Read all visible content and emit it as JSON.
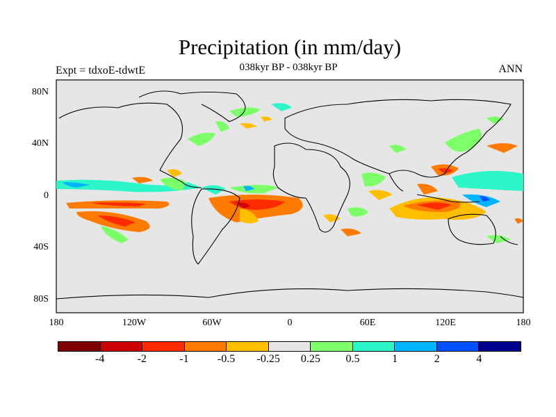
{
  "title": "Precipitation (in mm/day)",
  "subtitle": "038kyr BP - 038kyr BP",
  "left_label": "Expt = tdxoE-tdwtE",
  "right_label": "ANN",
  "y_ticks": [
    "80N",
    "40N",
    "0",
    "40S",
    "80S"
  ],
  "x_ticks": [
    "180",
    "120W",
    "60W",
    "0",
    "60E",
    "120E",
    "180"
  ],
  "colorbar": {
    "colors": [
      "#7f0000",
      "#cc0000",
      "#ff2a00",
      "#ff7b00",
      "#ffbf00",
      "#e6e6e6",
      "#7dff6a",
      "#2cf5c8",
      "#00b4ff",
      "#0050ff",
      "#00008c"
    ],
    "labels": [
      "-4",
      "-2",
      "-1",
      "-0.5",
      "-0.25",
      "0.25",
      "0.5",
      "1",
      "2",
      "4"
    ]
  },
  "colors": {
    "background": "#e6e6e6",
    "coastline": "#000000"
  }
}
